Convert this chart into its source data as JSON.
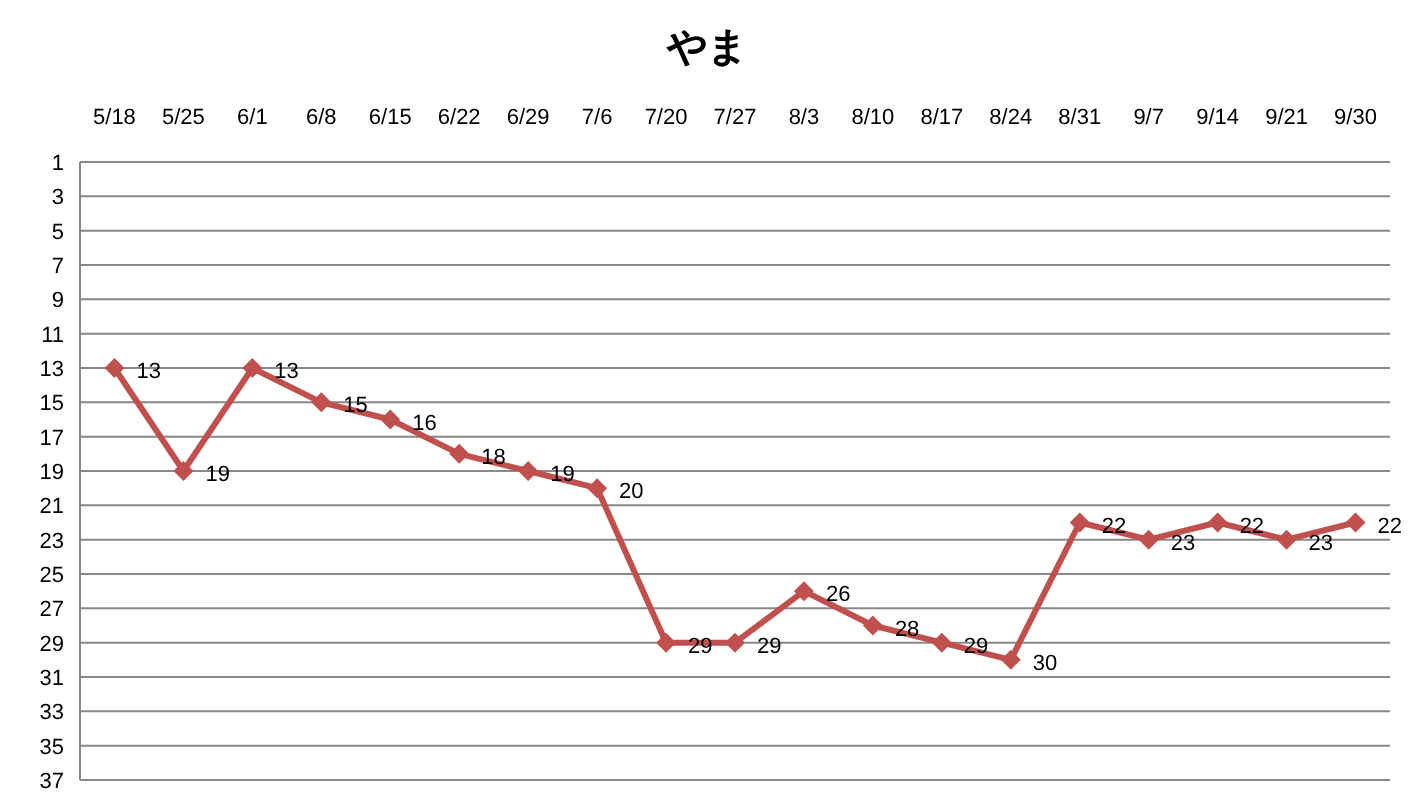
{
  "chart_data": {
    "type": "line",
    "title": "やま",
    "categories": [
      "5/18",
      "5/25",
      "6/1",
      "6/8",
      "6/15",
      "6/22",
      "6/29",
      "7/6",
      "7/20",
      "7/27",
      "8/3",
      "8/10",
      "8/17",
      "8/24",
      "8/31",
      "9/7",
      "9/14",
      "9/21",
      "9/30"
    ],
    "values": [
      13,
      19,
      13,
      15,
      16,
      18,
      19,
      20,
      29,
      29,
      26,
      28,
      29,
      30,
      22,
      23,
      22,
      23,
      22
    ],
    "color": "#c0504d",
    "ylim": [
      37,
      1
    ],
    "yticks": [
      1,
      3,
      5,
      7,
      9,
      11,
      13,
      15,
      17,
      19,
      21,
      23,
      25,
      27,
      29,
      31,
      33,
      35,
      37
    ],
    "grid": "y",
    "marker": "diamond",
    "data_labels": true
  }
}
